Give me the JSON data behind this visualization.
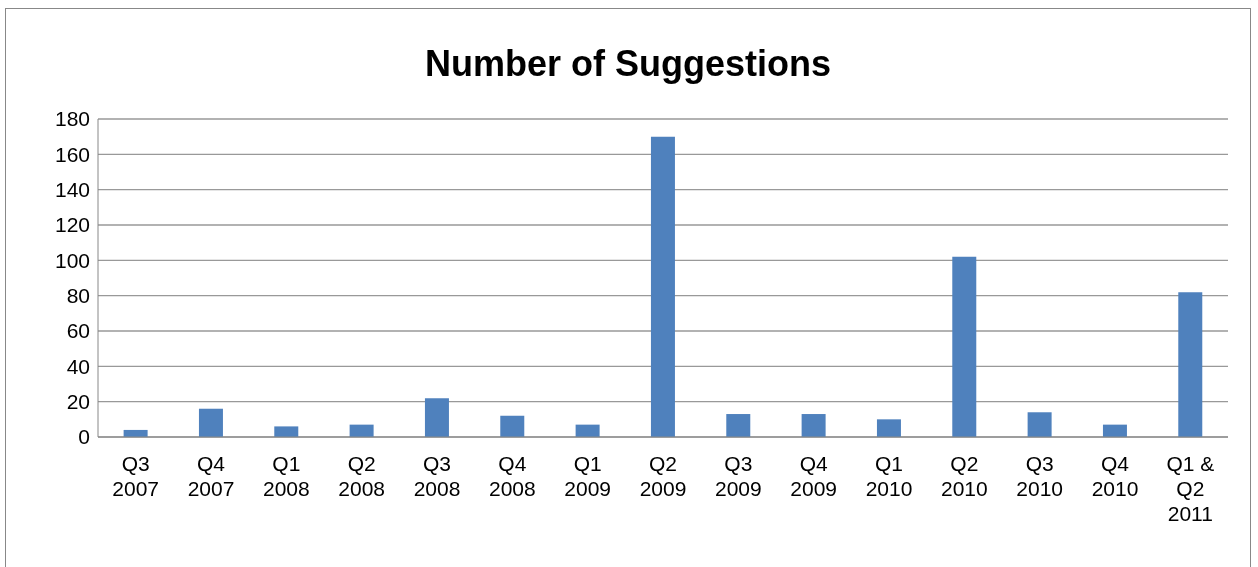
{
  "chart_data": {
    "type": "bar",
    "title": "Number of Suggestions",
    "categories": [
      "Q3\n2007",
      "Q4\n2007",
      "Q1\n2008",
      "Q2\n2008",
      "Q3\n2008",
      "Q4\n2008",
      "Q1\n2009",
      "Q2\n2009",
      "Q3\n2009",
      "Q4\n2009",
      "Q1\n2010",
      "Q2\n2010",
      "Q3\n2010",
      "Q4\n2010",
      "Q1 &\nQ2\n2011"
    ],
    "values": [
      4,
      16,
      6,
      7,
      22,
      12,
      7,
      170,
      13,
      13,
      10,
      102,
      14,
      7,
      82
    ],
    "color": "#4f81bd",
    "ylim": [
      0,
      180
    ],
    "yticks": [
      0,
      20,
      40,
      60,
      80,
      100,
      120,
      140,
      160,
      180
    ],
    "grid": "y",
    "legend": false
  }
}
